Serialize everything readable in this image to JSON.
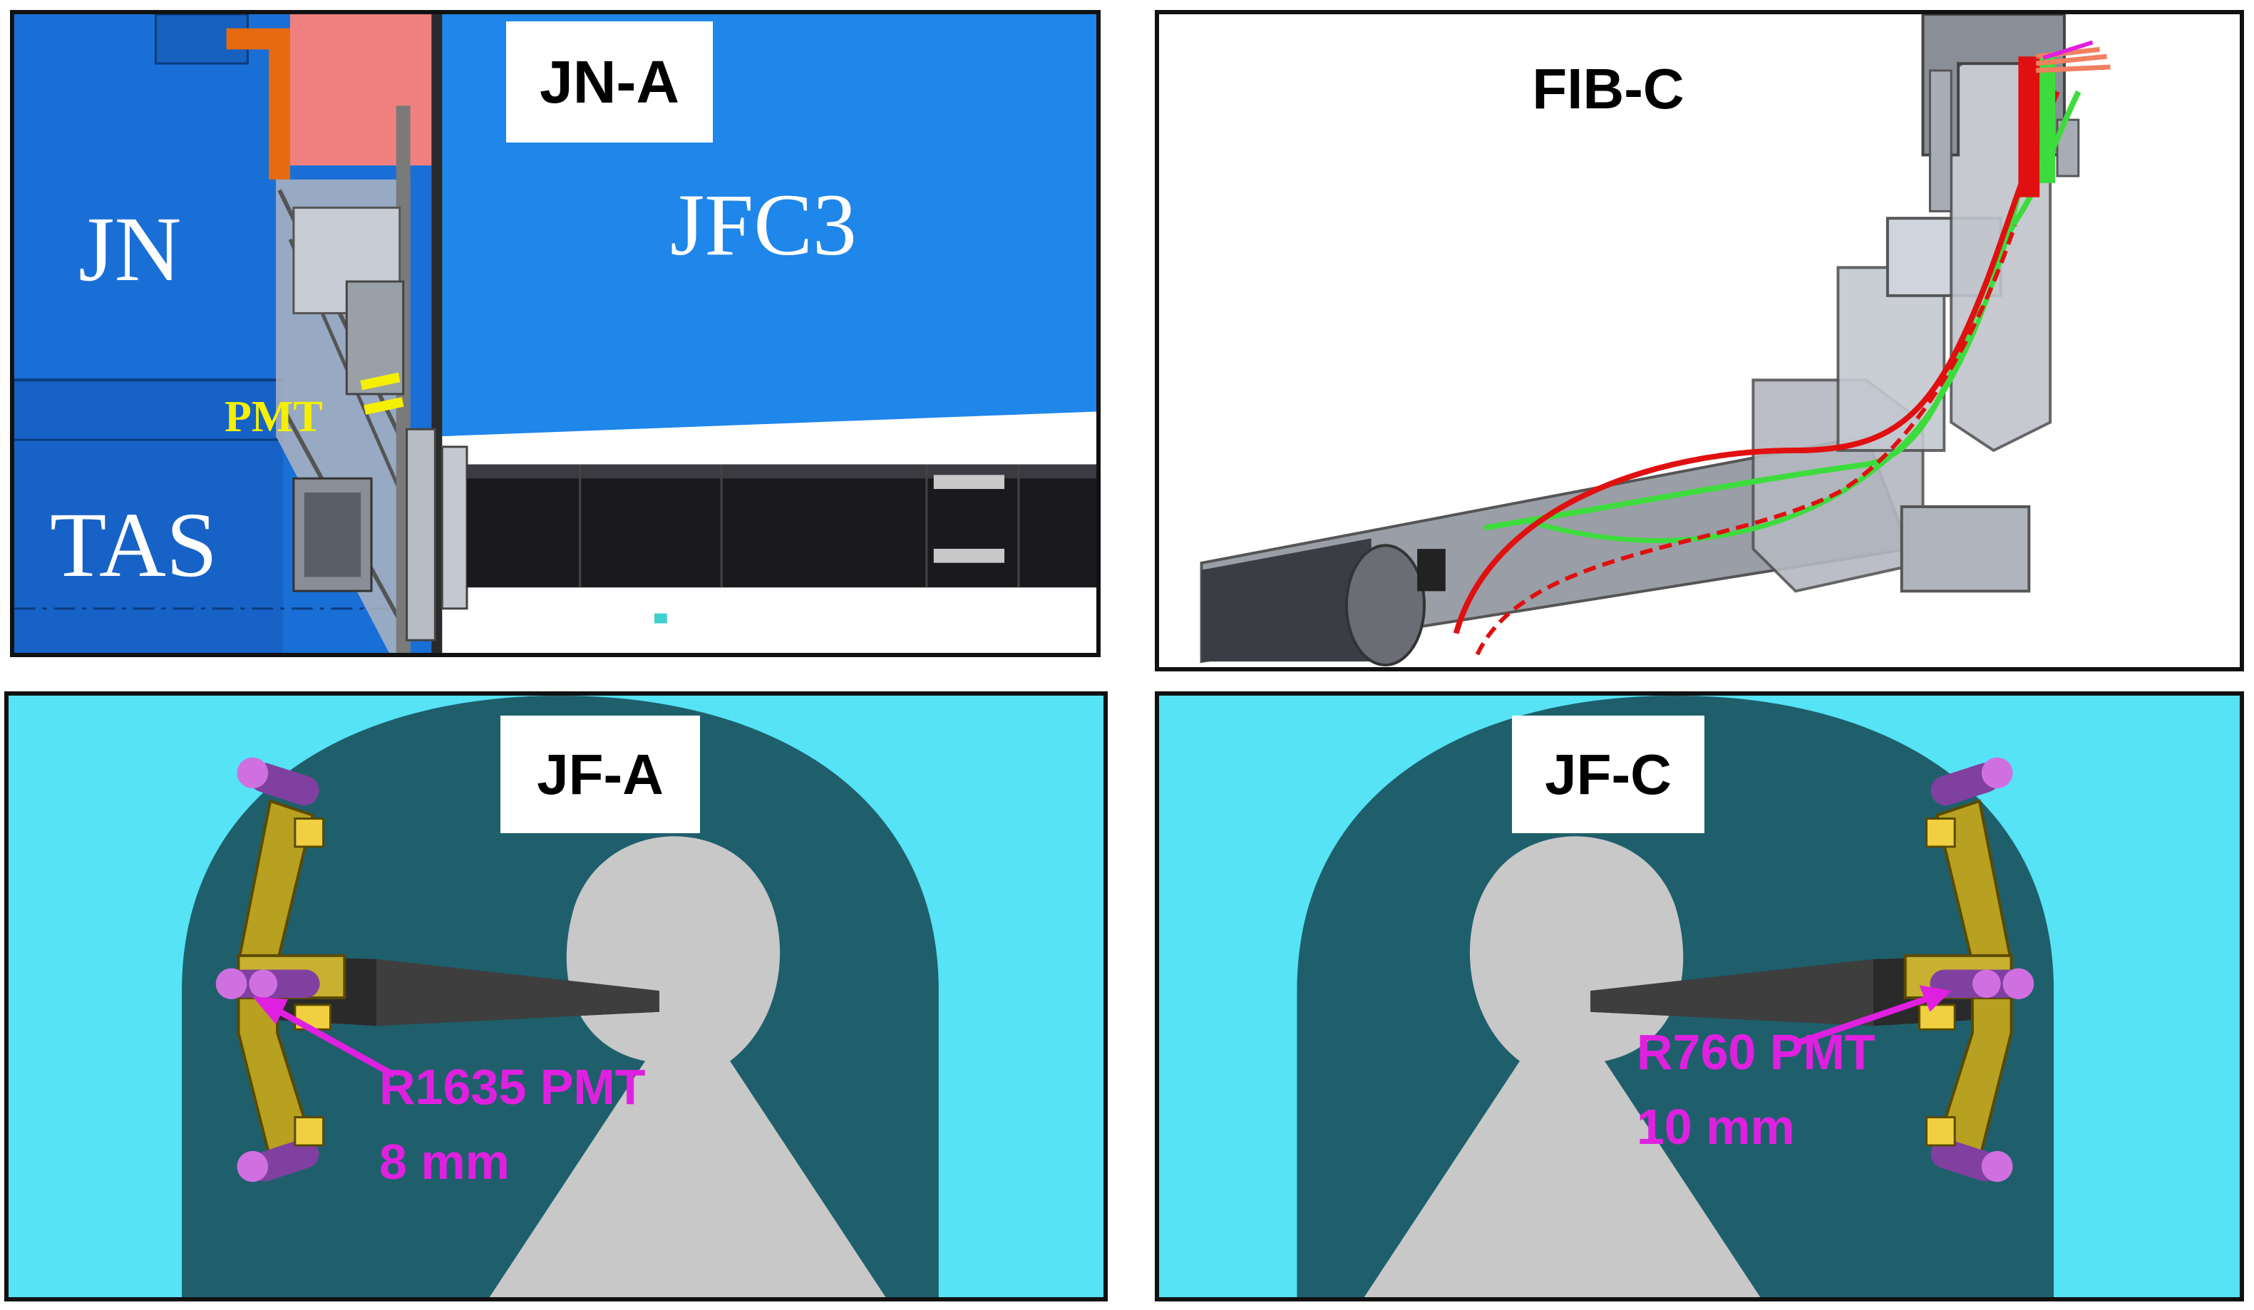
{
  "panels": {
    "jn_a": {
      "title": "JN-A",
      "labels": {
        "jn": "JN",
        "jfc3": "JFC3",
        "pmt": "PMT",
        "tas": "TAS"
      }
    },
    "fib_c": {
      "title": "FIB-C"
    },
    "jf_a": {
      "title": "JF-A",
      "pmt_model": "R1635 PMT",
      "pmt_size": "8 mm"
    },
    "jf_c": {
      "title": "JF-C",
      "pmt_model": "R760 PMT",
      "pmt_size": "10 mm"
    }
  },
  "colors": {
    "jn_blue": "#1a6fd6",
    "jfc3_blue": "#1f86ea",
    "salmon": "#f08080",
    "orange": "#e86a10",
    "cyan": "#55e3f5",
    "teal": "#1f5f6c",
    "grey": "#c8c8c8",
    "magenta": "#e020e0",
    "pmt_yellow": "#f5f000",
    "cable_green": "#3ddc3d",
    "cable_red": "#e01010"
  }
}
